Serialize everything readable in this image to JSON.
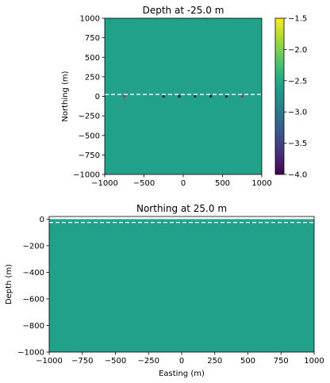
{
  "chart_data": [
    {
      "type": "heatmap",
      "title": "Depth at -25.0 m",
      "xlabel": "",
      "ylabel": "Northing (m)",
      "xlim": [
        -1000,
        1000
      ],
      "ylim": [
        -1000,
        1000
      ],
      "xticks": [
        -1000,
        -500,
        0,
        500,
        1000
      ],
      "xtick_labels": [
        "−1000",
        "−500",
        "0",
        "500",
        "1000"
      ],
      "yticks": [
        1000,
        750,
        500,
        250,
        0,
        -250,
        -500,
        -750,
        -1000
      ],
      "ytick_labels": [
        "1000",
        "750",
        "500",
        "250",
        "0",
        "−250",
        "−500",
        "−750",
        "−1000"
      ],
      "fill_color": "#21a08a",
      "dashed_line_y": 25,
      "markers": [
        {
          "x": -750,
          "y": 0,
          "color": "#d62728"
        },
        {
          "x": -250,
          "y": 0,
          "color": "#222222"
        },
        {
          "x": -50,
          "y": 0,
          "color": "#222222"
        },
        {
          "x": 150,
          "y": 0,
          "color": "#222222"
        },
        {
          "x": 350,
          "y": 0,
          "color": "#222222"
        },
        {
          "x": 550,
          "y": 0,
          "color": "#222222"
        },
        {
          "x": 750,
          "y": 0,
          "color": "#d62728"
        }
      ],
      "colorbar": {
        "range": [
          -4.0,
          -1.5
        ],
        "ticks": [
          -1.5,
          -2.0,
          -2.5,
          -3.0,
          -3.5,
          -4.0
        ],
        "tick_labels": [
          "−1.5",
          "−2.0",
          "−2.5",
          "−3.0",
          "−3.5",
          "−4.0"
        ],
        "colormap": "viridis"
      }
    },
    {
      "type": "heatmap",
      "title": "Northing at 25.0 m",
      "xlabel": "Easting (m)",
      "ylabel": "Depth (m)",
      "xlim": [
        -1000,
        1000
      ],
      "ylim": [
        -1000,
        20
      ],
      "xticks": [
        -1000,
        -750,
        -500,
        -250,
        0,
        250,
        500,
        750,
        1000
      ],
      "xtick_labels": [
        "−1000",
        "−750",
        "−500",
        "−250",
        "0",
        "250",
        "500",
        "750",
        "1000"
      ],
      "yticks": [
        0,
        -200,
        -400,
        -600,
        -800,
        -1000
      ],
      "ytick_labels": [
        "0",
        "−200",
        "−400",
        "−600",
        "−800",
        "−1000"
      ],
      "fill_color": "#21a08a",
      "fill_top": 0,
      "dashed_line_y": -25
    }
  ]
}
